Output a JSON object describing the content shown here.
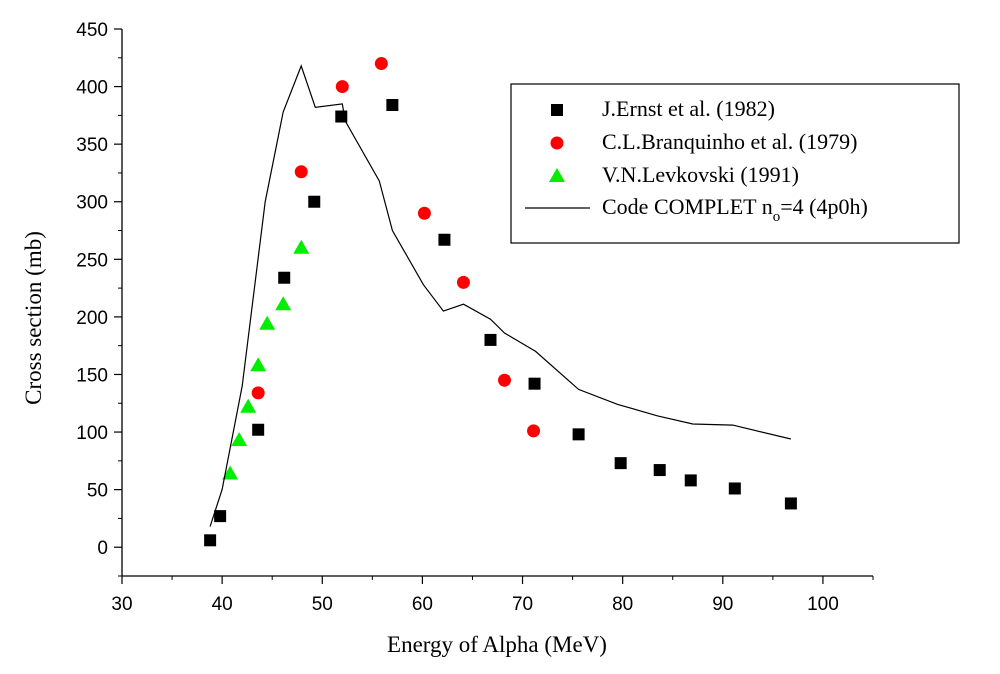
{
  "chart_data": {
    "type": "scatter",
    "title": "",
    "xlabel": "Energy of Alpha (MeV)",
    "ylabel": "Cross section (mb)",
    "xlim": [
      30,
      105
    ],
    "ylim": [
      -25,
      450
    ],
    "x_ticks": [
      30,
      40,
      50,
      60,
      70,
      80,
      90,
      100
    ],
    "y_ticks": [
      0,
      50,
      100,
      150,
      200,
      250,
      300,
      350,
      400,
      450
    ],
    "grid": false,
    "legend_position": "top-right",
    "series": [
      {
        "name": "J.Ernst  et al. (1982)",
        "kind": "marker",
        "marker": "square",
        "color": "#000000",
        "points": [
          [
            38.8,
            6
          ],
          [
            39.8,
            27
          ],
          [
            43.6,
            102
          ],
          [
            46.2,
            234
          ],
          [
            49.2,
            300
          ],
          [
            51.9,
            374
          ],
          [
            57.0,
            384
          ],
          [
            62.2,
            267
          ],
          [
            66.8,
            180
          ],
          [
            71.2,
            142
          ],
          [
            75.6,
            98
          ],
          [
            79.8,
            73
          ],
          [
            83.7,
            67
          ],
          [
            86.8,
            58
          ],
          [
            91.2,
            51
          ],
          [
            96.8,
            38
          ]
        ]
      },
      {
        "name": "C.L.Branquinho et al. (1979)",
        "kind": "marker",
        "marker": "circle",
        "color": "#ff0000",
        "points": [
          [
            43.6,
            134
          ],
          [
            47.9,
            326
          ],
          [
            52.0,
            400
          ],
          [
            55.9,
            420
          ],
          [
            60.2,
            290
          ],
          [
            64.1,
            230
          ],
          [
            68.2,
            145
          ],
          [
            71.1,
            101
          ]
        ]
      },
      {
        "name": "V.N.Levkovski  (1991)",
        "kind": "marker",
        "marker": "triangle",
        "color": "#00ee00",
        "points": [
          [
            40.8,
            64
          ],
          [
            41.7,
            93
          ],
          [
            42.6,
            122
          ],
          [
            43.6,
            158
          ],
          [
            44.5,
            194
          ],
          [
            46.1,
            211
          ],
          [
            47.9,
            260
          ]
        ]
      },
      {
        "name_main": "Code COMPLET n",
        "name_sub": "o",
        "name_rest": "=4 (4p0h)",
        "kind": "line",
        "color": "#000000",
        "points": [
          [
            38.8,
            18
          ],
          [
            40.0,
            50
          ],
          [
            42.0,
            140
          ],
          [
            44.3,
            300
          ],
          [
            46.1,
            378
          ],
          [
            47.9,
            418
          ],
          [
            49.3,
            382
          ],
          [
            52.0,
            385
          ],
          [
            52.3,
            370
          ],
          [
            55.7,
            318
          ],
          [
            57.0,
            275
          ],
          [
            60.1,
            228
          ],
          [
            62.1,
            205
          ],
          [
            64.1,
            211
          ],
          [
            66.8,
            198
          ],
          [
            68.2,
            186
          ],
          [
            71.3,
            170
          ],
          [
            75.6,
            137
          ],
          [
            79.5,
            124
          ],
          [
            83.5,
            114
          ],
          [
            87.0,
            107
          ],
          [
            91.0,
            106
          ],
          [
            96.8,
            94
          ]
        ]
      }
    ]
  }
}
